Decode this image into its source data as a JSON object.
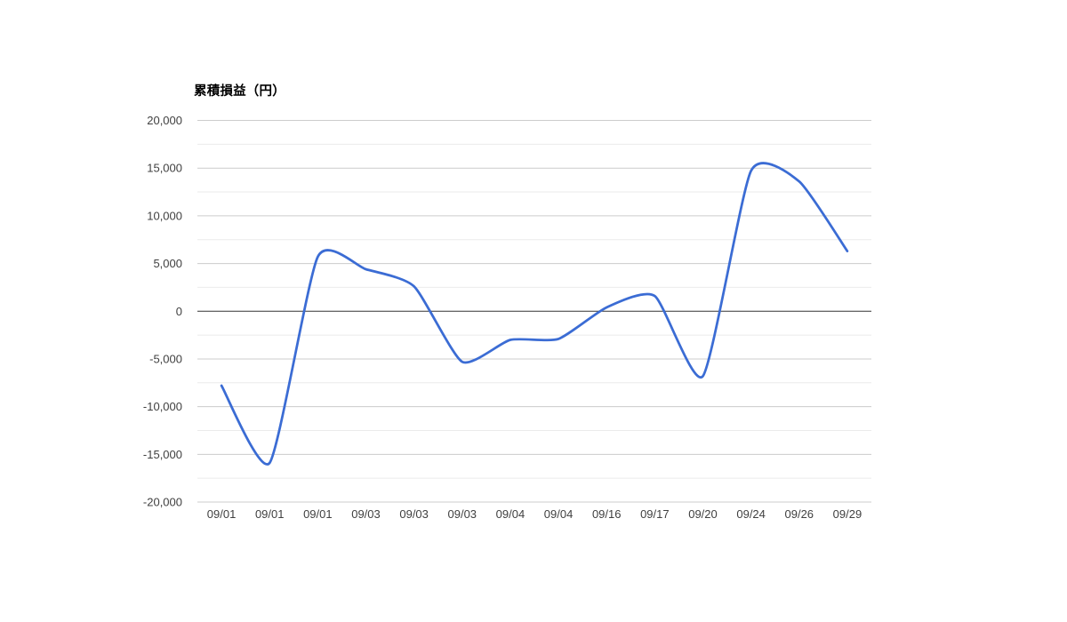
{
  "chart_data": {
    "type": "line",
    "title": "累積損益（円）",
    "categories": [
      "09/01",
      "09/01",
      "09/01",
      "09/03",
      "09/03",
      "09/03",
      "09/04",
      "09/04",
      "09/16",
      "09/17",
      "09/20",
      "09/24",
      "09/26",
      "09/29"
    ],
    "series": [
      {
        "name": "累積損益",
        "values": [
          -7800,
          -15900,
          5700,
          4400,
          2600,
          -5300,
          -3000,
          -2900,
          400,
          1600,
          -6800,
          14700,
          13600,
          6300
        ]
      }
    ],
    "xlabel": "",
    "ylabel": "",
    "ylim": [
      -20000,
      20000
    ],
    "y_ticks": [
      {
        "value": 20000,
        "label": "20,000"
      },
      {
        "value": 15000,
        "label": "15,000"
      },
      {
        "value": 10000,
        "label": "10,000"
      },
      {
        "value": 5000,
        "label": "5,000"
      },
      {
        "value": 0,
        "label": "0"
      },
      {
        "value": -5000,
        "label": "-5,000"
      },
      {
        "value": -10000,
        "label": "-10,000"
      },
      {
        "value": -15000,
        "label": "-15,000"
      },
      {
        "value": -20000,
        "label": "-20,000"
      }
    ],
    "grid": {
      "major_step": 5000,
      "minor_step": 2500,
      "grid_on": true
    },
    "legend": "none",
    "smooth_curve": true,
    "colors": {
      "line": "#3b6cd4",
      "major_grid": "#cccccc",
      "minor_grid": "#ebebeb",
      "zero_axis": "#333333",
      "axis_text": "#404040"
    }
  }
}
